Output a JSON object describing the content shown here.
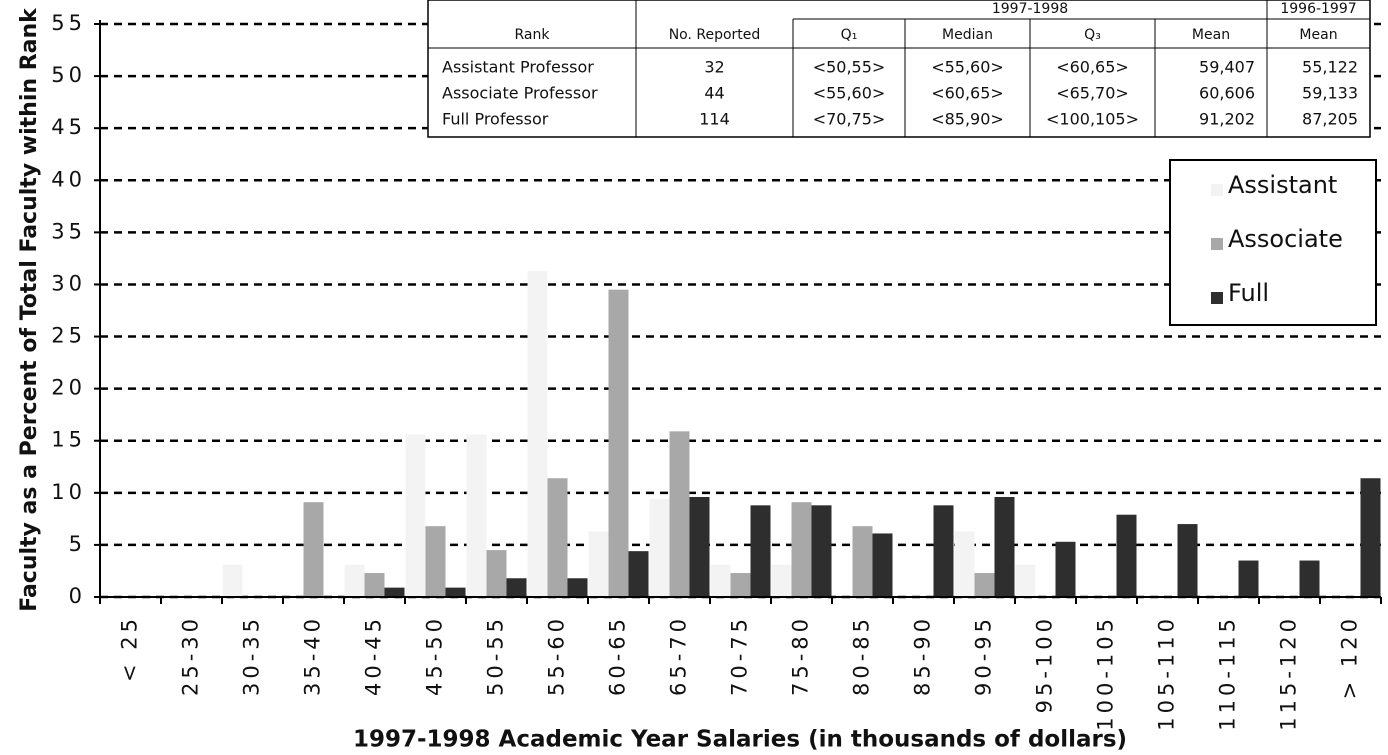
{
  "chart_data": {
    "type": "bar",
    "x_label": "1997-1998 Academic Year Salaries (in thousands of dollars)",
    "y_label": "Faculty as a Percent of Total Faculty within Rank",
    "categories": [
      "< 25",
      "25-30",
      "30-35",
      "35-40",
      "40-45",
      "45-50",
      "50-55",
      "55-60",
      "60-65",
      "65-70",
      "70-75",
      "75-80",
      "80-85",
      "85-90",
      "90-95",
      "95-100",
      "100-105",
      "105-110",
      "110-115",
      "115-120",
      "> 120"
    ],
    "series": [
      {
        "name": "Assistant",
        "color": "#f3f3f3",
        "values": [
          0,
          0,
          3.1,
          0,
          3.1,
          15.6,
          15.6,
          31.3,
          6.3,
          9.4,
          3.1,
          3.1,
          0,
          0,
          6.3,
          3.1,
          0,
          0,
          0,
          0,
          0
        ]
      },
      {
        "name": "Associate",
        "color": "#a8a8a8",
        "values": [
          0,
          0,
          0,
          9.1,
          2.3,
          6.8,
          4.5,
          11.4,
          29.5,
          15.9,
          2.3,
          9.1,
          6.8,
          0,
          2.3,
          0,
          0,
          0,
          0,
          0,
          0
        ]
      },
      {
        "name": "Full",
        "color": "#2e2e2e",
        "values": [
          0,
          0,
          0,
          0,
          0.9,
          0.9,
          1.8,
          1.8,
          4.4,
          9.6,
          8.8,
          8.8,
          6.1,
          8.8,
          9.6,
          5.3,
          7.9,
          7.0,
          3.5,
          3.5,
          11.4
        ]
      }
    ],
    "ylim": [
      0,
      55
    ],
    "yticks": [
      0,
      5,
      10,
      15,
      20,
      25,
      30,
      35,
      40,
      45,
      50,
      55
    ],
    "grid": true,
    "legend": "right",
    "table": {
      "group_headers": [
        "1997-1998",
        "1996-1997"
      ],
      "columns": [
        "Rank",
        "No. Reported",
        "Q₁",
        "Median",
        "Q₃",
        "Mean",
        "Mean"
      ],
      "rows": [
        [
          "Assistant Professor",
          "32",
          "<50,55>",
          "<55,60>",
          "<60,65>",
          "59,407",
          "55,122"
        ],
        [
          "Associate Professor",
          "44",
          "<55,60>",
          "<60,65>",
          "<65,70>",
          "60,606",
          "59,133"
        ],
        [
          "Full Professor",
          "114",
          "<70,75>",
          "<85,90>",
          "<100,105>",
          "91,202",
          "87,205"
        ]
      ]
    }
  }
}
